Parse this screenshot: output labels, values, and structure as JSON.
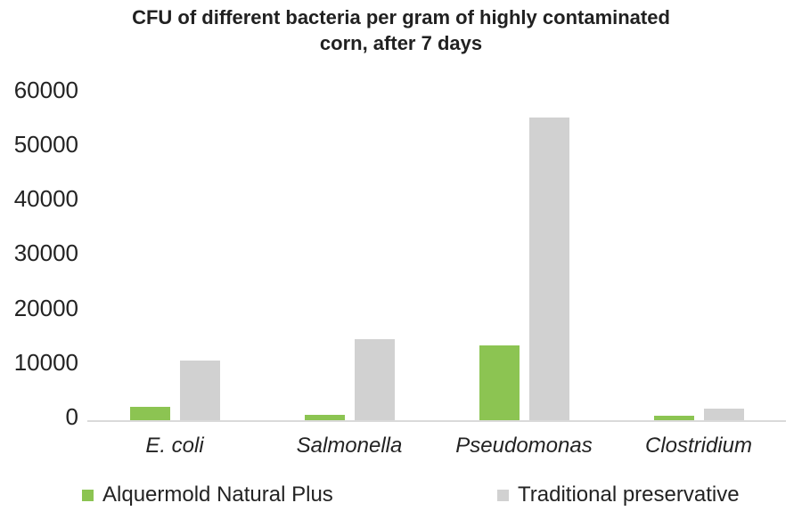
{
  "header": {
    "title_line1": "CFU of different bacteria per gram of highly contaminated",
    "title_line2": "corn, after 7 days"
  },
  "chart_data": {
    "type": "bar",
    "title": "CFU of different bacteria per gram of highly contaminated corn, after 7 days",
    "categories": [
      "E. coli",
      "Salmonella",
      "Pseudomonas",
      "Clostridium"
    ],
    "series": [
      {
        "name": "Alquermold Natural Plus",
        "color": "#8CC452",
        "values": [
          2400,
          1000,
          13700,
          800
        ]
      },
      {
        "name": "Traditional preservative",
        "color": "#D1D1D1",
        "values": [
          11000,
          14900,
          55400,
          2100
        ]
      }
    ],
    "xlabel": "",
    "ylabel": "",
    "ylim": [
      0,
      60000
    ],
    "y_ticks": [
      0,
      10000,
      20000,
      30000,
      40000,
      50000,
      60000
    ],
    "grid": false,
    "legend_position": "bottom",
    "category_label_style": "italic",
    "axis_line_color": "#DADADA",
    "text_color": "#232323",
    "background_color": "#FFFFFF"
  }
}
